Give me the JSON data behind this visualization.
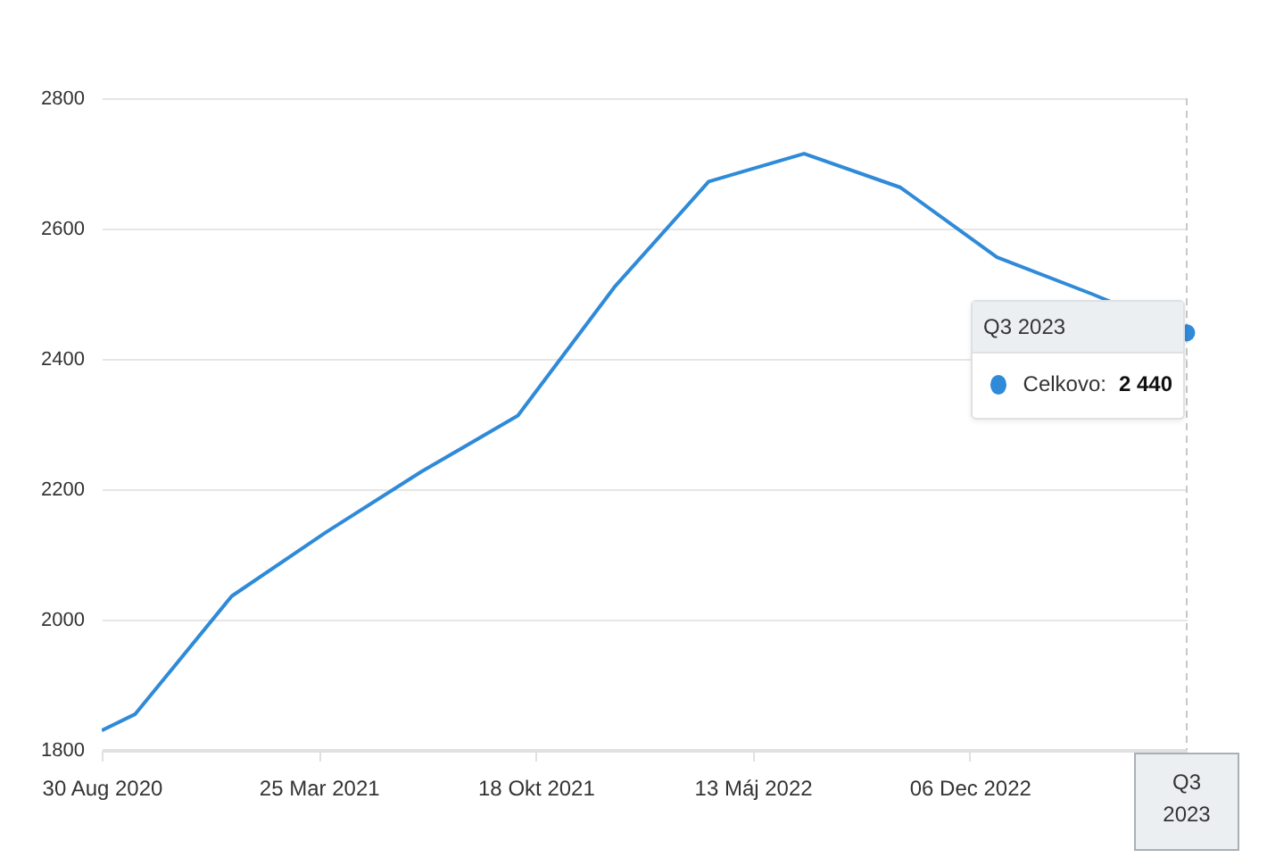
{
  "chart_data": {
    "type": "line",
    "x": [
      "2020-08-30",
      "2020-10-01",
      "2021-01-01",
      "2021-04-01",
      "2021-07-01",
      "2021-10-01",
      "2022-01-01",
      "2022-04-01",
      "2022-07-01",
      "2022-10-01",
      "2023-01-01",
      "2023-04-01",
      "2023-07-01"
    ],
    "series": [
      {
        "name": "Celkovo:",
        "color": "#2f8ad8",
        "values": [
          1830,
          1855,
          2036,
          2134,
          2227,
          2313,
          2510,
          2672,
          2715,
          2663,
          2556,
          2500,
          2440
        ],
        "value_labels": [
          null,
          null,
          null,
          null,
          null,
          null,
          null,
          null,
          null,
          null,
          null,
          null,
          "2 440"
        ]
      }
    ],
    "xlim": [
      "2020-08-30",
      "2023-07-01"
    ],
    "xticks": [
      {
        "value": "2020-08-30",
        "label": "30 Aug 2020"
      },
      {
        "value": "2021-03-25",
        "label": "25 Mar 2021"
      },
      {
        "value": "2021-10-18",
        "label": "18 Okt 2021"
      },
      {
        "value": "2022-05-13",
        "label": "13 Máj 2022"
      },
      {
        "value": "2022-12-06",
        "label": "06 Dec 2022"
      }
    ],
    "ylim": [
      1800,
      2800
    ],
    "yticks": [
      1800,
      2000,
      2200,
      2400,
      2600,
      2800
    ],
    "grid": "y",
    "legend": "right",
    "marker": "none",
    "line_style": "solid",
    "ref_lines": [
      {
        "axis": "x",
        "value": "2023-07-01",
        "label": "Q3 2023",
        "color": "#c8c8c8",
        "line_style": "dashed"
      }
    ]
  }
}
